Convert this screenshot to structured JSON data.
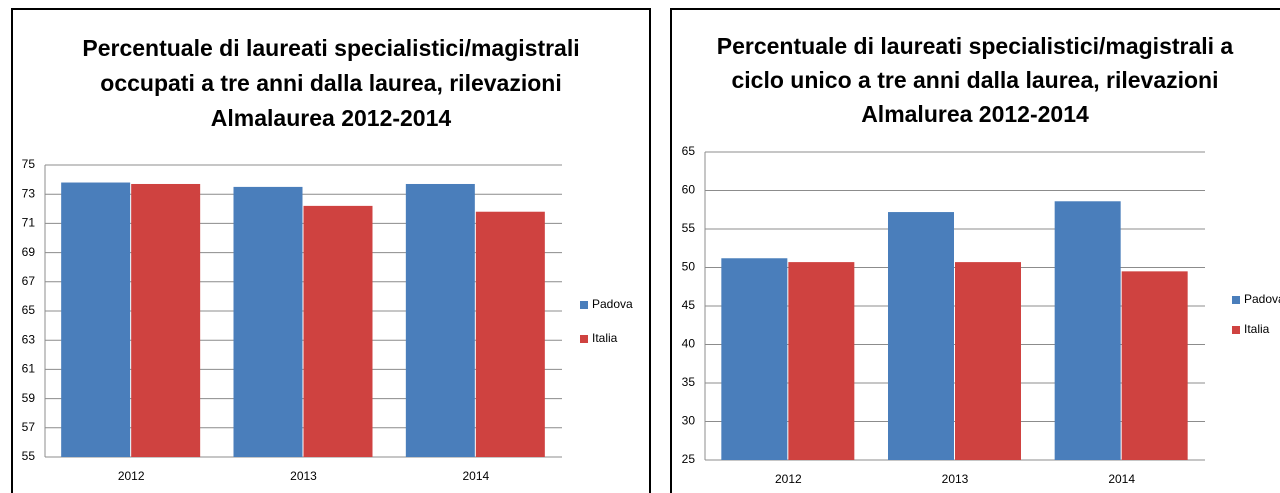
{
  "chart_data": [
    {
      "type": "bar",
      "title": [
        "Percentuale di laureati specialistici/magistrali",
        "occupati a tre anni dalla laurea, rilevazioni",
        "Almalaurea 2012-2014"
      ],
      "categories": [
        "2012",
        "2013",
        "2014"
      ],
      "series": [
        {
          "name": "Padova",
          "color": "#4a7ebb",
          "values": [
            73.8,
            73.5,
            73.7
          ]
        },
        {
          "name": "Italia",
          "color": "#cf4240",
          "values": [
            73.7,
            72.2,
            71.8
          ]
        }
      ],
      "ylim": [
        55,
        75
      ],
      "yticks": [
        55,
        57,
        59,
        61,
        63,
        65,
        67,
        69,
        71,
        73,
        75
      ],
      "grid": true,
      "legend": "right"
    },
    {
      "type": "bar",
      "title": [
        "Percentuale di laureati specialistici/magistrali a",
        "ciclo unico a tre anni dalla laurea, rilevazioni",
        "Almalurea 2012-2014"
      ],
      "categories": [
        "2012",
        "2013",
        "2014"
      ],
      "series": [
        {
          "name": "Padova",
          "color": "#4a7ebb",
          "values": [
            51.2,
            57.2,
            58.6
          ]
        },
        {
          "name": "Italia",
          "color": "#cf4240",
          "values": [
            50.7,
            50.7,
            49.5
          ]
        }
      ],
      "ylim": [
        25,
        65
      ],
      "yticks": [
        25,
        30,
        35,
        40,
        45,
        50,
        55,
        60,
        65
      ],
      "grid": true,
      "legend": "right"
    }
  ]
}
